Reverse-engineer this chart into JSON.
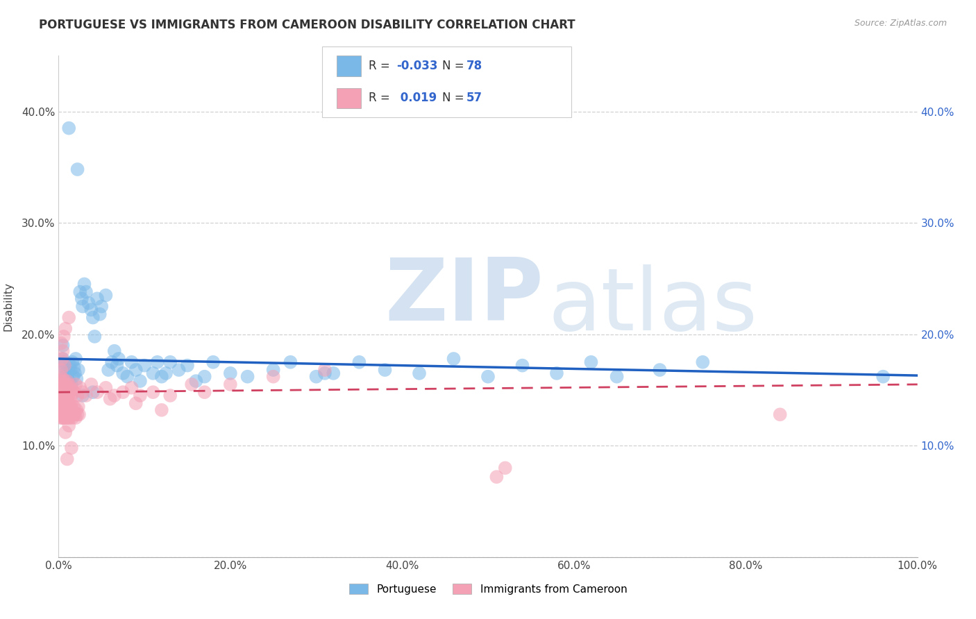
{
  "title": "PORTUGUESE VS IMMIGRANTS FROM CAMEROON DISABILITY CORRELATION CHART",
  "source": "Source: ZipAtlas.com",
  "ylabel": "Disability",
  "xlim": [
    0.0,
    1.0
  ],
  "ylim": [
    0.0,
    0.45
  ],
  "xticks": [
    0.0,
    0.2,
    0.4,
    0.6,
    0.8,
    1.0
  ],
  "xticklabels": [
    "0.0%",
    "20.0%",
    "40.0%",
    "60.0%",
    "80.0%",
    "100.0%"
  ],
  "yticks": [
    0.0,
    0.1,
    0.2,
    0.3,
    0.4
  ],
  "yticklabels_left": [
    "",
    "10.0%",
    "20.0%",
    "30.0%",
    "40.0%"
  ],
  "yticklabels_right": [
    "",
    "10.0%",
    "20.0%",
    "30.0%",
    "40.0%"
  ],
  "color_portuguese": "#7ab8e8",
  "color_cameroon": "#f4a0b5",
  "color_line_portuguese": "#2060c0",
  "color_line_cameroon": "#d04060",
  "background_color": "#ffffff",
  "watermark_zip": "ZIP",
  "watermark_atlas": "atlas",
  "port_line_start_y": 0.178,
  "port_line_end_y": 0.163,
  "cam_line_start_y": 0.148,
  "cam_line_end_y": 0.155,
  "portuguese_x": [
    0.012,
    0.022,
    0.005,
    0.005,
    0.006,
    0.007,
    0.008,
    0.008,
    0.009,
    0.01,
    0.01,
    0.011,
    0.012,
    0.013,
    0.014,
    0.015,
    0.016,
    0.017,
    0.018,
    0.019,
    0.02,
    0.021,
    0.023,
    0.025,
    0.027,
    0.028,
    0.03,
    0.032,
    0.035,
    0.038,
    0.04,
    0.042,
    0.045,
    0.048,
    0.05,
    0.055,
    0.058,
    0.062,
    0.065,
    0.068,
    0.07,
    0.075,
    0.08,
    0.085,
    0.09,
    0.095,
    0.1,
    0.11,
    0.115,
    0.12,
    0.125,
    0.13,
    0.14,
    0.15,
    0.16,
    0.17,
    0.18,
    0.2,
    0.22,
    0.25,
    0.27,
    0.3,
    0.32,
    0.35,
    0.38,
    0.42,
    0.46,
    0.5,
    0.54,
    0.58,
    0.62,
    0.65,
    0.7,
    0.75,
    0.04,
    0.028,
    0.31,
    0.96
  ],
  "portuguese_y": [
    0.385,
    0.348,
    0.19,
    0.178,
    0.175,
    0.172,
    0.168,
    0.162,
    0.165,
    0.158,
    0.152,
    0.165,
    0.158,
    0.172,
    0.168,
    0.155,
    0.175,
    0.162,
    0.17,
    0.165,
    0.178,
    0.16,
    0.168,
    0.238,
    0.232,
    0.225,
    0.245,
    0.238,
    0.228,
    0.222,
    0.215,
    0.198,
    0.232,
    0.218,
    0.225,
    0.235,
    0.168,
    0.175,
    0.185,
    0.172,
    0.178,
    0.165,
    0.162,
    0.175,
    0.168,
    0.158,
    0.172,
    0.165,
    0.175,
    0.162,
    0.165,
    0.175,
    0.168,
    0.172,
    0.158,
    0.162,
    0.175,
    0.165,
    0.162,
    0.168,
    0.175,
    0.162,
    0.165,
    0.175,
    0.168,
    0.165,
    0.178,
    0.162,
    0.172,
    0.165,
    0.175,
    0.162,
    0.168,
    0.175,
    0.148,
    0.145,
    0.165,
    0.162
  ],
  "cameroon_x": [
    0.001,
    0.002,
    0.002,
    0.003,
    0.003,
    0.004,
    0.004,
    0.005,
    0.005,
    0.006,
    0.006,
    0.007,
    0.007,
    0.008,
    0.008,
    0.009,
    0.009,
    0.01,
    0.01,
    0.011,
    0.011,
    0.012,
    0.013,
    0.014,
    0.015,
    0.016,
    0.018,
    0.02,
    0.022,
    0.025,
    0.028,
    0.032,
    0.038,
    0.045,
    0.055,
    0.065,
    0.075,
    0.085,
    0.095,
    0.11,
    0.13,
    0.155,
    0.17,
    0.2,
    0.25,
    0.31,
    0.012,
    0.008,
    0.006,
    0.003,
    0.005,
    0.004,
    0.007,
    0.003,
    0.52,
    0.84,
    0.51
  ],
  "cameroon_y": [
    0.155,
    0.148,
    0.162,
    0.15,
    0.158,
    0.145,
    0.155,
    0.148,
    0.16,
    0.152,
    0.155,
    0.148,
    0.158,
    0.145,
    0.152,
    0.155,
    0.148,
    0.145,
    0.158,
    0.152,
    0.145,
    0.155,
    0.148,
    0.152,
    0.145,
    0.15,
    0.148,
    0.155,
    0.145,
    0.152,
    0.148,
    0.145,
    0.155,
    0.148,
    0.152,
    0.145,
    0.148,
    0.152,
    0.145,
    0.148,
    0.145,
    0.155,
    0.148,
    0.155,
    0.162,
    0.168,
    0.215,
    0.205,
    0.198,
    0.192,
    0.185,
    0.178,
    0.172,
    0.168,
    0.08,
    0.128,
    0.072
  ],
  "cam_dense_x": [
    0.001,
    0.001,
    0.002,
    0.002,
    0.002,
    0.003,
    0.003,
    0.003,
    0.003,
    0.004,
    0.004,
    0.004,
    0.005,
    0.005,
    0.005,
    0.005,
    0.006,
    0.006,
    0.006,
    0.007,
    0.007,
    0.007,
    0.008,
    0.008,
    0.008,
    0.009,
    0.009,
    0.009,
    0.01,
    0.01,
    0.011,
    0.011,
    0.012,
    0.012,
    0.013,
    0.013,
    0.014,
    0.014,
    0.015,
    0.015,
    0.016,
    0.016,
    0.017,
    0.018,
    0.019,
    0.02,
    0.021,
    0.022,
    0.023,
    0.024,
    0.012,
    0.008,
    0.06,
    0.09,
    0.12,
    0.015,
    0.01
  ],
  "cam_dense_y": [
    0.14,
    0.132,
    0.135,
    0.128,
    0.145,
    0.138,
    0.13,
    0.125,
    0.145,
    0.132,
    0.138,
    0.125,
    0.13,
    0.135,
    0.128,
    0.142,
    0.132,
    0.125,
    0.138,
    0.13,
    0.135,
    0.125,
    0.128,
    0.138,
    0.132,
    0.125,
    0.135,
    0.142,
    0.128,
    0.132,
    0.125,
    0.135,
    0.128,
    0.138,
    0.132,
    0.125,
    0.128,
    0.135,
    0.128,
    0.138,
    0.125,
    0.132,
    0.128,
    0.135,
    0.128,
    0.125,
    0.132,
    0.128,
    0.135,
    0.128,
    0.118,
    0.112,
    0.142,
    0.138,
    0.132,
    0.098,
    0.088
  ]
}
